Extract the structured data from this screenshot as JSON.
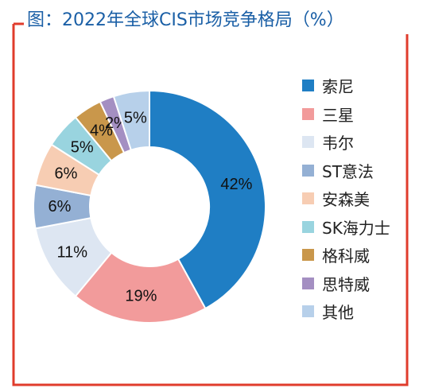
{
  "title": "图：2022年全球CIS市场竞争格局（%）",
  "colors": {
    "frame": "#e03c2c",
    "title": "#1a5fa6"
  },
  "chart_data": {
    "type": "pie",
    "title": "图：2022年全球CIS市场竞争格局（%）",
    "unit": "%",
    "legend_position": "right",
    "categories": [
      "索尼",
      "三星",
      "韦尔",
      "ST意法",
      "安森美",
      "SK海力士",
      "格科威",
      "思特威",
      "其他"
    ],
    "values": [
      42,
      19,
      11,
      6,
      6,
      5,
      4,
      2,
      5
    ],
    "labels": [
      "42%",
      "19%",
      "11%",
      "6%",
      "6%",
      "5%",
      "4%",
      "2%",
      "5%"
    ],
    "colors": [
      "#1f7ec4",
      "#f29b9b",
      "#dde6f2",
      "#94b0d4",
      "#f7cdb3",
      "#99d4df",
      "#c9974b",
      "#a48fc2",
      "#b7d0ea"
    ]
  }
}
